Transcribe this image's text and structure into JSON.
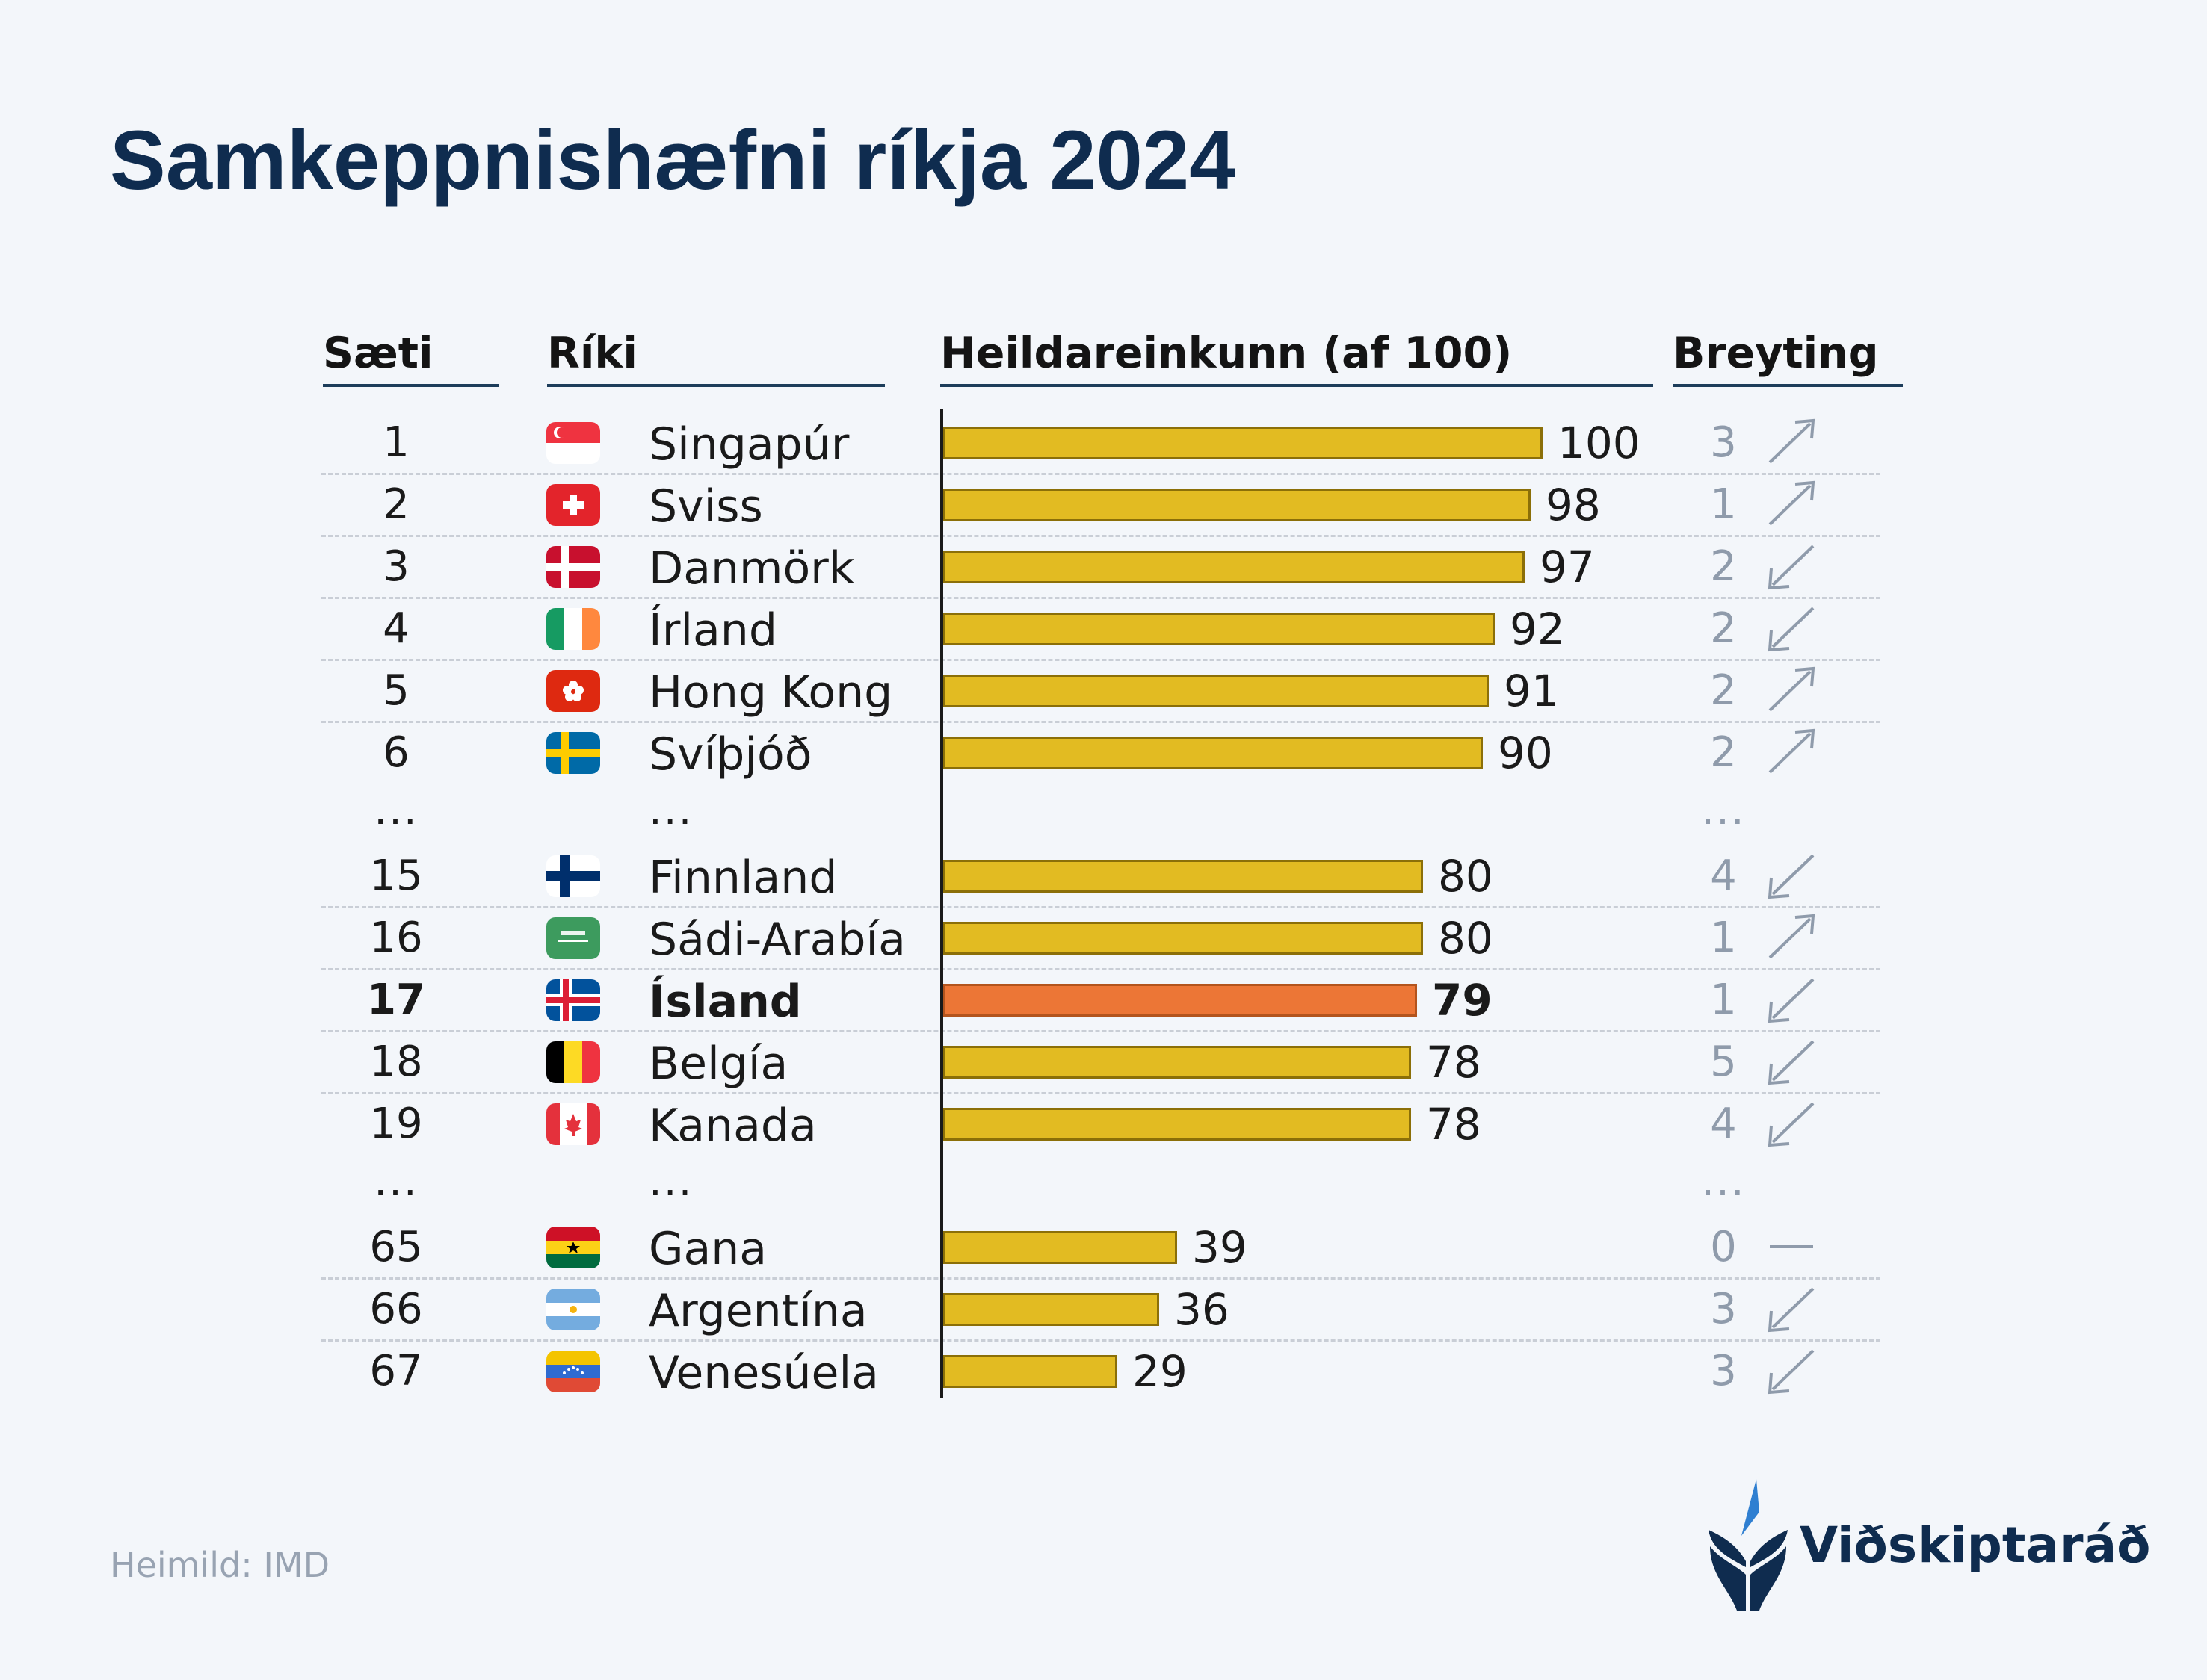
{
  "title": "Samkeppnishæfni ríkja 2024",
  "headers": {
    "rank": "Sæti",
    "country": "Ríki",
    "score": "Heildareinkunn (af 100)",
    "change": "Breyting"
  },
  "ellipsis": "...",
  "source": "Heimild: IMD",
  "brand": "Viðskiptaráð",
  "colors": {
    "bar": "#e2bb22",
    "bar_highlight": "#ec7636",
    "title": "#0f2c4f",
    "change_text": "#8f9bab"
  },
  "chart_data": {
    "type": "bar",
    "orientation": "horizontal",
    "title": "Samkeppnishæfni ríkja 2024",
    "xlabel": "Heildareinkunn (af 100)",
    "xlim": [
      0,
      100
    ],
    "grid": false,
    "highlight": "Ísland",
    "rows": [
      {
        "rank": "1",
        "country": "Singapúr",
        "flag": "singapore-flag",
        "score": 100,
        "change": "3",
        "direction": "up"
      },
      {
        "rank": "2",
        "country": "Sviss",
        "flag": "switzerland-flag",
        "score": 98,
        "change": "1",
        "direction": "up"
      },
      {
        "rank": "3",
        "country": "Danmörk",
        "flag": "denmark-flag",
        "score": 97,
        "change": "2",
        "direction": "down"
      },
      {
        "rank": "4",
        "country": "Írland",
        "flag": "ireland-flag",
        "score": 92,
        "change": "2",
        "direction": "down"
      },
      {
        "rank": "5",
        "country": "Hong Kong",
        "flag": "hong-kong-flag",
        "score": 91,
        "change": "2",
        "direction": "up"
      },
      {
        "rank": "6",
        "country": "Svíþjóð",
        "flag": "sweden-flag",
        "score": 90,
        "change": "2",
        "direction": "up"
      },
      {
        "rank": "15",
        "country": "Finnland",
        "flag": "finland-flag",
        "score": 80,
        "change": "4",
        "direction": "down"
      },
      {
        "rank": "16",
        "country": "Sádi-Arabía",
        "flag": "saudi-arabia-flag",
        "score": 80,
        "change": "1",
        "direction": "up"
      },
      {
        "rank": "17",
        "country": "Ísland",
        "flag": "iceland-flag",
        "score": 79,
        "change": "1",
        "direction": "down"
      },
      {
        "rank": "18",
        "country": "Belgía",
        "flag": "belgium-flag",
        "score": 78,
        "change": "5",
        "direction": "down"
      },
      {
        "rank": "19",
        "country": "Kanada",
        "flag": "canada-flag",
        "score": 78,
        "change": "4",
        "direction": "down"
      },
      {
        "rank": "65",
        "country": "Gana",
        "flag": "ghana-flag",
        "score": 39,
        "change": "0",
        "direction": "none"
      },
      {
        "rank": "66",
        "country": "Argentína",
        "flag": "argentina-flag",
        "score": 36,
        "change": "3",
        "direction": "down"
      },
      {
        "rank": "67",
        "country": "Venesúela",
        "flag": "venezuela-flag",
        "score": 29,
        "change": "3",
        "direction": "down"
      }
    ]
  }
}
